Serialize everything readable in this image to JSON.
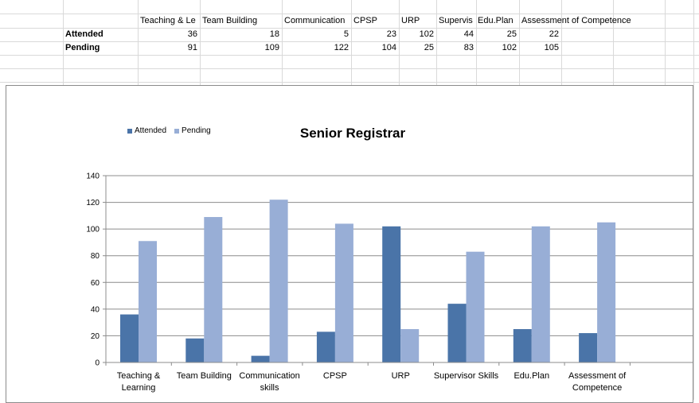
{
  "sheet": {
    "header_row": [
      "Teaching & Le",
      "Team Building",
      "Communication",
      "CPSP",
      "URP",
      "Supervis",
      "Edu.Plan",
      "Assessment of Competence"
    ],
    "rows": [
      {
        "label": "Attended",
        "values": [
          "36",
          "18",
          "5",
          "23",
          "102",
          "44",
          "25",
          "22"
        ]
      },
      {
        "label": "Pending",
        "values": [
          "91",
          "109",
          "122",
          "104",
          "25",
          "83",
          "102",
          "105"
        ]
      }
    ]
  },
  "chart_data": {
    "type": "bar",
    "title": "Senior Registrar",
    "categories": [
      [
        "Teaching &",
        "Learning"
      ],
      [
        "Team Building"
      ],
      [
        "Communication",
        "skills"
      ],
      [
        "CPSP"
      ],
      [
        "URP"
      ],
      [
        "Supervisor Skills"
      ],
      [
        "Edu.Plan"
      ],
      [
        "Assessment of",
        "Competence"
      ]
    ],
    "series": [
      {
        "name": "Attended",
        "color": "#4a74a8",
        "values": [
          36,
          18,
          5,
          23,
          102,
          44,
          25,
          22
        ]
      },
      {
        "name": "Pending",
        "color": "#98aed6",
        "values": [
          91,
          109,
          122,
          104,
          25,
          83,
          102,
          105
        ]
      }
    ],
    "ylim": [
      0,
      140
    ],
    "yticks": [
      "0",
      "20",
      "40",
      "60",
      "80",
      "100",
      "120",
      "140"
    ],
    "grid": true,
    "legend_position": "top-left"
  }
}
